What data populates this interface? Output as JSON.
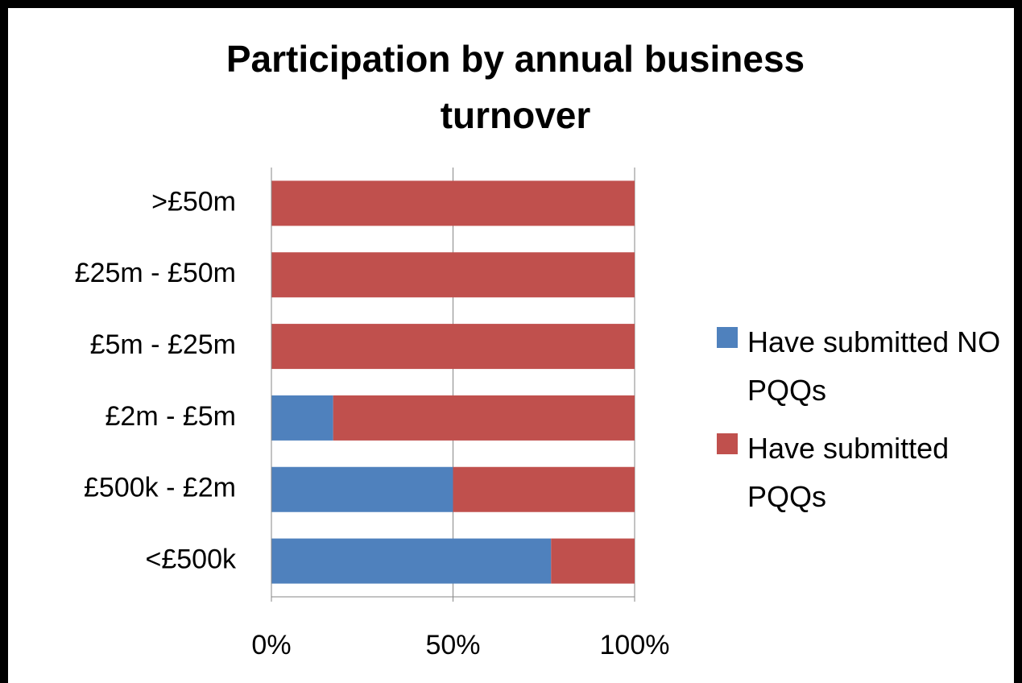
{
  "chart_data": {
    "type": "bar",
    "orientation": "horizontal",
    "stacked": true,
    "title": "Participation by annual business turnover",
    "categories": [
      "<£500k",
      "£500k - £2m",
      "£2m - £5m",
      "£5m - £25m",
      "£25m - £50m",
      ">£50m"
    ],
    "series": [
      {
        "name": "Have submitted NO PQQs",
        "color": "#4f81bd",
        "values": [
          77,
          50,
          17,
          0,
          0,
          0
        ]
      },
      {
        "name": "Have submitted PQQs",
        "color": "#c0504d",
        "values": [
          23,
          50,
          83,
          100,
          100,
          100
        ]
      }
    ],
    "xlim": [
      0,
      100
    ],
    "xticks": [
      {
        "value": 0,
        "label": "0%"
      },
      {
        "value": 50,
        "label": "50%"
      },
      {
        "value": 100,
        "label": "100%"
      }
    ],
    "grid": true,
    "legend": "right"
  }
}
